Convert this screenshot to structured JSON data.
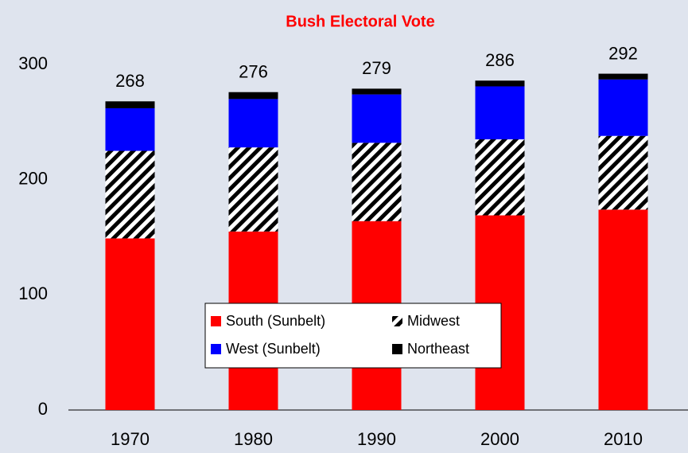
{
  "chart_data": {
    "type": "stacked_bar",
    "title": "Bush Electoral Vote",
    "categories": [
      "1970",
      "1980",
      "1990",
      "2000",
      "2010"
    ],
    "series": [
      {
        "name": "South (Sunbelt)",
        "color": "#ff0000",
        "values": [
          149,
          155,
          164,
          169,
          174
        ]
      },
      {
        "name": "Midwest",
        "color": "#000000",
        "hatch": true,
        "values": [
          76,
          73,
          68,
          66,
          64
        ]
      },
      {
        "name": "West (Sunbelt)",
        "color": "#0000ff",
        "values": [
          37,
          42,
          42,
          46,
          49
        ]
      },
      {
        "name": "Northeast",
        "color": "#000000",
        "values": [
          6,
          6,
          5,
          5,
          5
        ]
      }
    ],
    "totals": [
      268,
      276,
      279,
      286,
      292
    ],
    "ylim": [
      0,
      300
    ],
    "yticks": [
      0,
      100,
      200,
      300
    ]
  }
}
